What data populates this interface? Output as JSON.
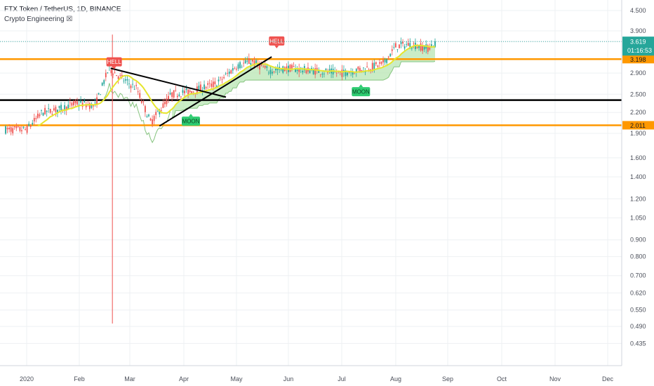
{
  "header": {
    "title": "FTX Token / TetherUS, 1D, BINANCE",
    "indicator": "Crypto Engineering ☒"
  },
  "colors": {
    "up": "#26a69a",
    "down": "#ef5350",
    "ma": "#e6e62e",
    "cloud": "#b8e6b3",
    "cloud_edge": "#86c47f",
    "stop": "#ef5350",
    "orange": "#ff9800",
    "line": "#000000",
    "hell": "#ef5350",
    "moon": "#2ecc71",
    "last": "#26a69a"
  },
  "chart_data": {
    "type": "candlestick",
    "exchange": "BINANCE",
    "timeframe": "1D",
    "x_labels": [
      "2020",
      "Feb",
      "Mar",
      "Apr",
      "May",
      "Jun",
      "Jul",
      "Aug",
      "Sep",
      "Oct",
      "Nov",
      "Dec"
    ],
    "y_ticks": [
      "4.500",
      "3.900",
      "3.619",
      "3.198",
      "2.900",
      "2.500",
      "2.200",
      "2.011",
      "1.900",
      "1.600",
      "1.400",
      "1.200",
      "1.050",
      "0.900",
      "0.800",
      "0.700",
      "0.620",
      "0.550",
      "0.490",
      "0.435"
    ],
    "y_scale": "log",
    "last_price": "3.619",
    "countdown": "01:16:53",
    "levels": [
      {
        "label": "3.198",
        "value": 3.198,
        "color": "orange"
      },
      {
        "label": "2.011",
        "value": 2.011,
        "color": "orange"
      },
      {
        "value": 2.4,
        "color": "black"
      }
    ],
    "price_path": [
      [
        "2020-01-01",
        1.95
      ],
      [
        "2020-01-10",
        2.2
      ],
      [
        "2020-01-20",
        2.25
      ],
      [
        "2020-01-31",
        2.35
      ],
      [
        "2020-02-10",
        2.3
      ],
      [
        "2020-02-18",
        3.0
      ],
      [
        "2020-02-25",
        2.8
      ],
      [
        "2020-03-05",
        2.6
      ],
      [
        "2020-03-13",
        2.05
      ],
      [
        "2020-03-25",
        2.5
      ],
      [
        "2020-04-05",
        2.55
      ],
      [
        "2020-04-20",
        2.7
      ],
      [
        "2020-05-01",
        3.05
      ],
      [
        "2020-05-10",
        3.15
      ],
      [
        "2020-05-20",
        2.95
      ],
      [
        "2020-06-01",
        3.0
      ],
      [
        "2020-06-15",
        2.95
      ],
      [
        "2020-07-01",
        2.9
      ],
      [
        "2020-07-15",
        3.0
      ],
      [
        "2020-07-25",
        3.1
      ],
      [
        "2020-08-01",
        3.5
      ],
      [
        "2020-08-10",
        3.55
      ],
      [
        "2020-08-20",
        3.45
      ],
      [
        "2020-08-25",
        3.619
      ]
    ],
    "spike": {
      "date": "2020-02-20",
      "high": 3.8,
      "low": 0.5
    },
    "annotations": [
      {
        "text": "HELL",
        "date": "2020-02-21",
        "value": 2.98,
        "kind": "hell"
      },
      {
        "text": "HELL",
        "date": "2020-05-25",
        "value": 3.45,
        "kind": "hell"
      },
      {
        "text": "MOON",
        "date": "2020-04-05",
        "value": 2.18,
        "kind": "moon"
      },
      {
        "text": "MOON",
        "date": "2020-07-12",
        "value": 2.68,
        "kind": "moon"
      }
    ],
    "trendlines": [
      {
        "from": [
          "2020-02-19",
          3.0
        ],
        "to": [
          "2020-04-25",
          2.45
        ]
      },
      {
        "from": [
          "2020-03-18",
          2.0
        ],
        "to": [
          "2020-05-22",
          3.25
        ]
      }
    ]
  }
}
